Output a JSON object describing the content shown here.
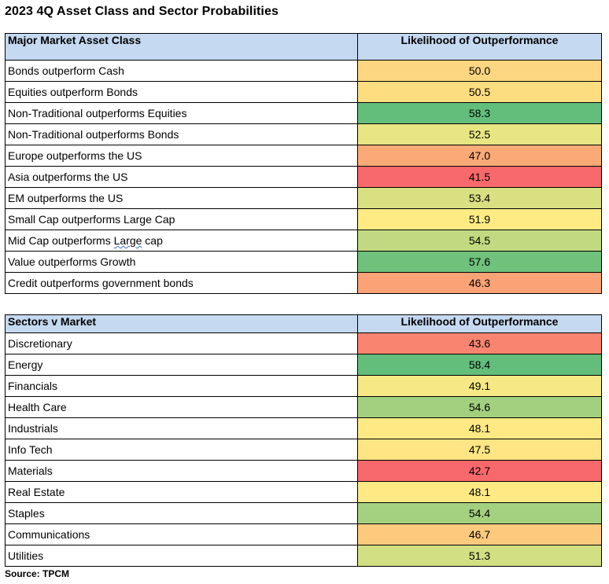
{
  "title": "2023 4Q Asset Class and Sector Probabilities",
  "asset_table": {
    "header_label": "Major Market Asset Class",
    "header_value": "Likelihood of Outperformance",
    "rows": [
      {
        "label": "Bonds outperform Cash",
        "value": "50.0",
        "color": "#fcd680"
      },
      {
        "label": "Equities outperform Bonds",
        "value": "50.5",
        "color": "#fcdd80"
      },
      {
        "label": "Non-Traditional outperforms Equities",
        "value": "58.3",
        "color": "#63be7b"
      },
      {
        "label": "Non-Traditional outperforms Bonds",
        "value": "52.5",
        "color": "#e8e583"
      },
      {
        "label": "Europe outperforms the US",
        "value": "47.0",
        "color": "#fbaa77"
      },
      {
        "label": "Asia outperforms the US",
        "value": "41.5",
        "color": "#f8696b"
      },
      {
        "label": "EM outperforms the US",
        "value": "53.4",
        "color": "#d8e082"
      },
      {
        "label": "Small Cap outperforms Large Cap",
        "value": "51.9",
        "color": "#feeb84"
      },
      {
        "label_pre": "Mid Cap outperforms ",
        "label_mark": "Large",
        "label_post": " cap",
        "value": "54.5",
        "color": "#c1da81"
      },
      {
        "label": "Value outperforms Growth",
        "value": "57.6",
        "color": "#6fc17c"
      },
      {
        "label": "Credit outperforms government bonds",
        "value": "46.3",
        "color": "#fba276"
      }
    ]
  },
  "sector_table": {
    "header_label": "Sectors v Market",
    "header_value": "Likelihood of Outperformance",
    "rows": [
      {
        "label": "Discretionary",
        "value": "43.6",
        "color": "#f98570"
      },
      {
        "label": "Energy",
        "value": "58.4",
        "color": "#63be7b"
      },
      {
        "label": "Financials",
        "value": "49.1",
        "color": "#f6e884"
      },
      {
        "label": "Health Care",
        "value": "54.6",
        "color": "#a2d07f"
      },
      {
        "label": "Industrials",
        "value": "48.1",
        "color": "#ffe984"
      },
      {
        "label": "Info Tech",
        "value": "47.5",
        "color": "#ffe583"
      },
      {
        "label": "Materials",
        "value": "42.7",
        "color": "#f8696b"
      },
      {
        "label": "Real Estate",
        "value": "48.1",
        "color": "#ffe984"
      },
      {
        "label": "Staples",
        "value": "54.4",
        "color": "#a4d17f"
      },
      {
        "label": "Communications",
        "value": "46.7",
        "color": "#fdca7d"
      },
      {
        "label": "Utilities",
        "value": "51.3",
        "color": "#d2df82"
      }
    ]
  },
  "source": "Source: TPCM"
}
